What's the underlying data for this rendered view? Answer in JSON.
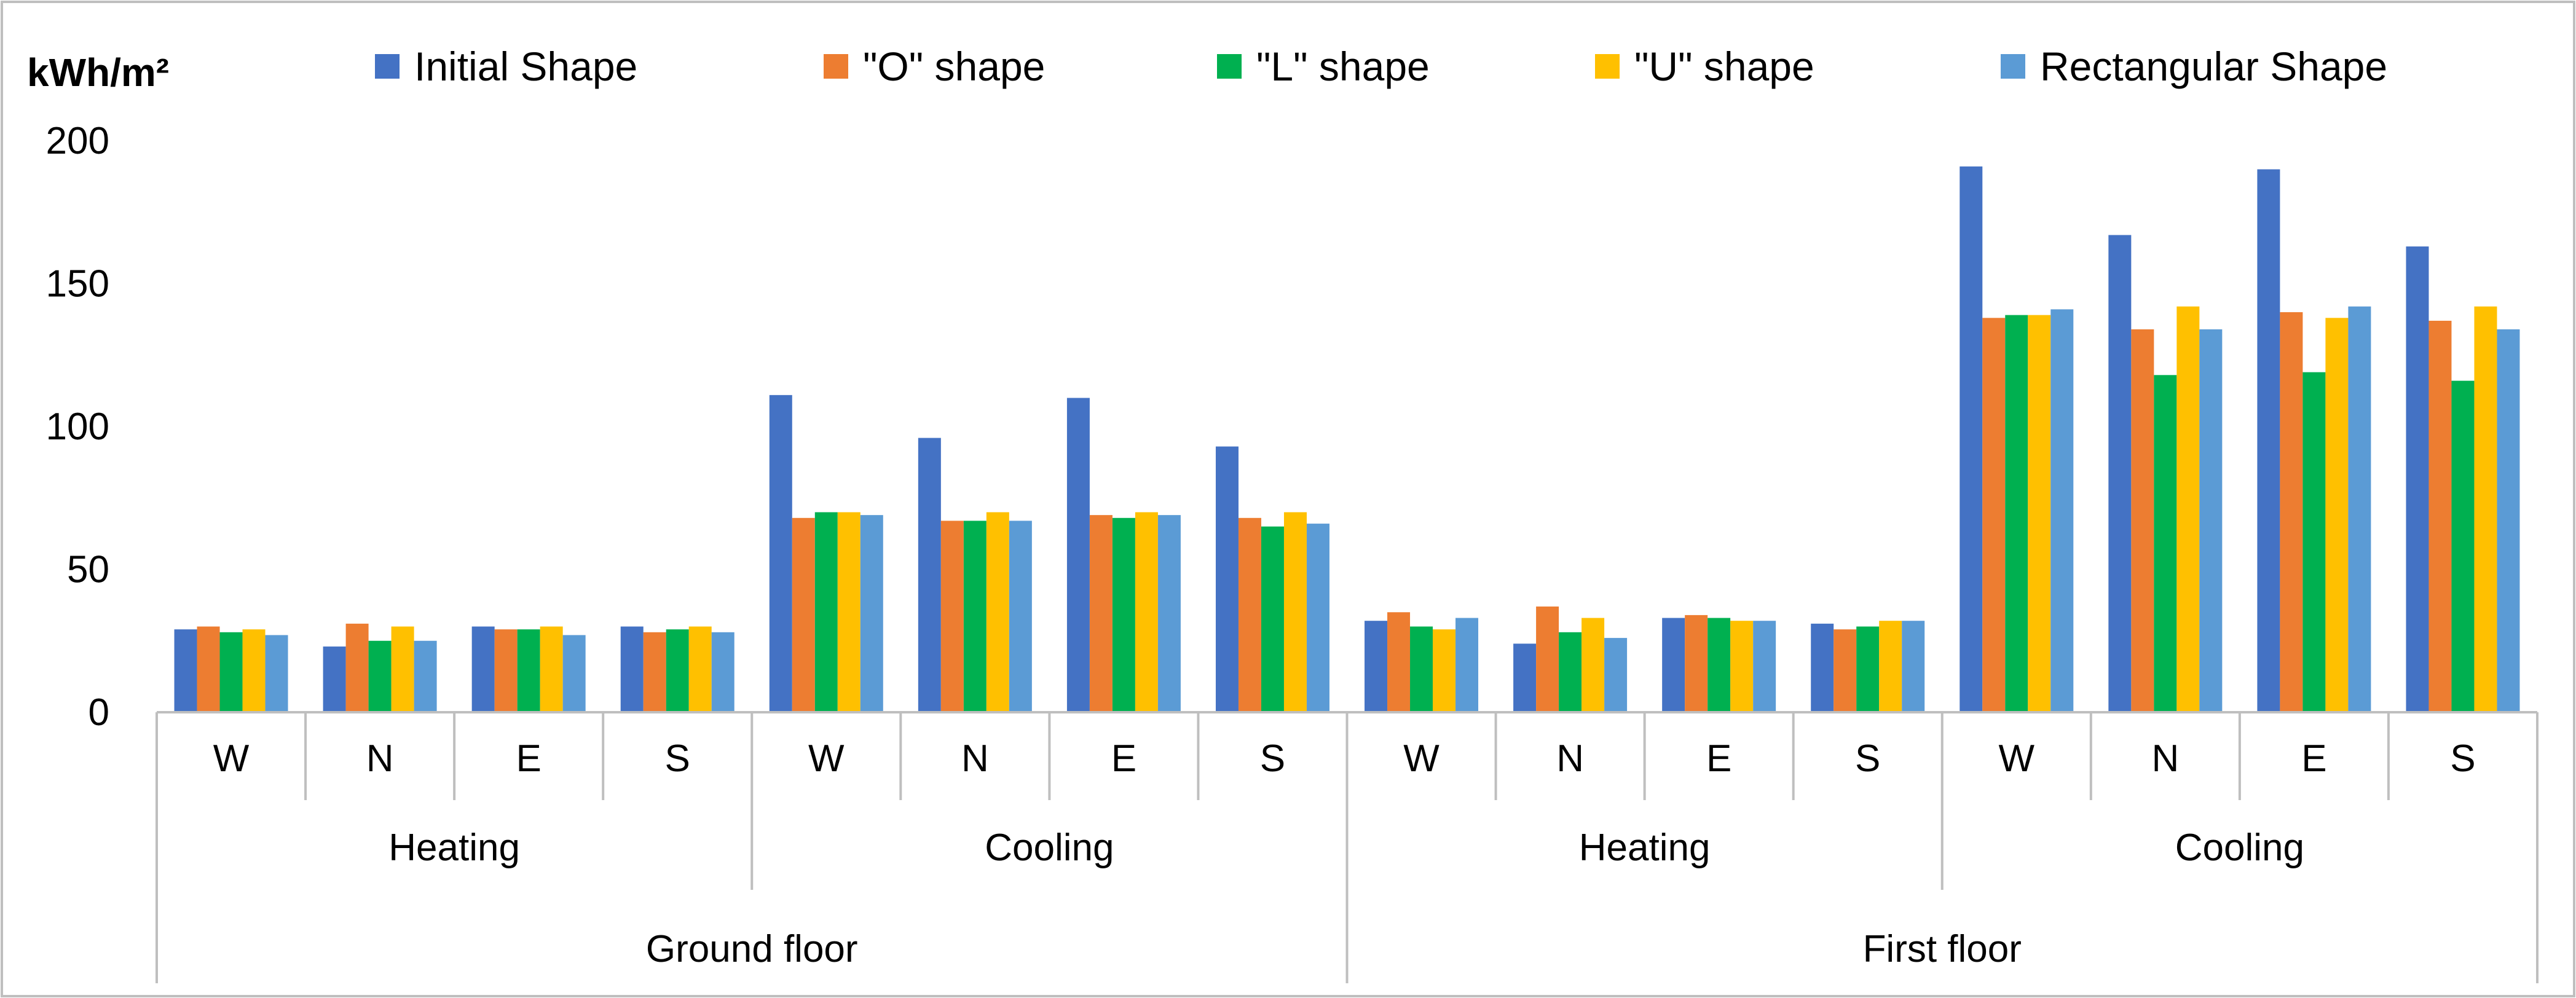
{
  "chart_data": {
    "type": "bar",
    "ylabel": "kWh/m²",
    "ylim": [
      0,
      200
    ],
    "yticks": [
      0,
      50,
      100,
      150,
      200
    ],
    "grid": false,
    "legend_position": "top",
    "categories": [
      "W",
      "N",
      "E",
      "S",
      "W",
      "N",
      "E",
      "S",
      "W",
      "N",
      "E",
      "S",
      "W",
      "N",
      "E",
      "S"
    ],
    "groups_level2": [
      {
        "label": "Heating",
        "span": 4
      },
      {
        "label": "Cooling",
        "span": 4
      },
      {
        "label": "Heating",
        "span": 4
      },
      {
        "label": "Cooling",
        "span": 4
      }
    ],
    "groups_level3": [
      {
        "label": "Ground floor",
        "span": 8
      },
      {
        "label": "First floor",
        "span": 8
      }
    ],
    "series": [
      {
        "name": "Initial Shape",
        "color": "#4472C4",
        "values": [
          29,
          23,
          30,
          30,
          111,
          96,
          110,
          93,
          32,
          24,
          33,
          31,
          191,
          167,
          190,
          163
        ]
      },
      {
        "name": "\"O\" shape",
        "color": "#ED7D31",
        "values": [
          30,
          31,
          29,
          28,
          68,
          67,
          69,
          68,
          35,
          37,
          34,
          29,
          138,
          134,
          140,
          137
        ]
      },
      {
        "name": "\"L\" shape",
        "color": "#00B050",
        "values": [
          28,
          25,
          29,
          29,
          70,
          67,
          68,
          65,
          30,
          28,
          33,
          30,
          139,
          118,
          119,
          116
        ]
      },
      {
        "name": "\"U\" shape",
        "color": "#FFC000",
        "values": [
          29,
          30,
          30,
          30,
          70,
          70,
          70,
          70,
          29,
          33,
          32,
          32,
          139,
          142,
          138,
          142
        ]
      },
      {
        "name": "Rectangular Shape",
        "color": "#5B9BD5",
        "values": [
          27,
          25,
          27,
          28,
          69,
          67,
          69,
          66,
          33,
          26,
          32,
          32,
          141,
          134,
          142,
          134
        ]
      }
    ]
  }
}
